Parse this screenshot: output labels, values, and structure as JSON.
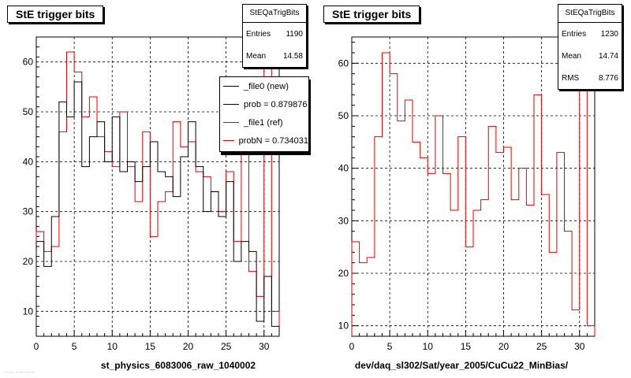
{
  "charts": [
    {
      "title": "StE trigger bits",
      "x_title": "st_physics_6083006_raw_1040002",
      "stats": {
        "name": "StEQaTrigBits",
        "rows": [
          {
            "label": "Entries",
            "value": "1190"
          },
          {
            "label": "Mean",
            "value": "14.58"
          }
        ]
      },
      "legend": [
        {
          "label": "_file0 (new)",
          "color": "#000000"
        },
        {
          "label": "prob = 0.879876",
          "color": "#000000"
        },
        {
          "label": "_file1 (ref)",
          "color": "#e00000"
        },
        {
          "label": "probN = 0.734031",
          "color": "#e00000"
        }
      ]
    },
    {
      "title": "StE trigger bits",
      "x_title": "dev/daq_sl302/Sat/year_2005/CuCu22_MinBias/",
      "stats": {
        "name": "StEQaTrigBits",
        "rows": [
          {
            "label": "Entries",
            "value": "1230"
          },
          {
            "label": "Mean",
            "value": "14.74"
          },
          {
            "label": "RMS",
            "value": "8.776"
          }
        ]
      },
      "legend": []
    }
  ],
  "footer": "... ... .. ... ... ....",
  "chart_data": [
    {
      "type": "histogram",
      "title": "StE trigger bits",
      "xlabel": "st_physics_6083006_raw_1040002",
      "xlim": [
        0,
        32
      ],
      "ylim": [
        5,
        65
      ],
      "xticks": [
        0,
        5,
        10,
        15,
        20,
        25,
        30
      ],
      "yticks": [
        10,
        20,
        30,
        40,
        50,
        60
      ],
      "grid": true,
      "legend_position": "top-right",
      "series": [
        {
          "name": "_file0 (new)",
          "color": "#000000",
          "values": [
            24,
            19,
            29,
            52,
            49,
            56,
            39,
            45,
            48,
            40,
            49,
            38,
            40,
            36,
            39,
            44,
            38,
            37,
            33,
            41,
            48,
            39,
            30,
            34,
            29,
            36,
            20,
            24,
            22,
            8,
            17,
            7
          ]
        },
        {
          "name": "_file1 (ref)",
          "color": "#e00000",
          "values": [
            26,
            22,
            23,
            46,
            62,
            58,
            49,
            53,
            45,
            42,
            39,
            50,
            39,
            32,
            46,
            25,
            32,
            34,
            48,
            43,
            44,
            38,
            37,
            34,
            30,
            38,
            24,
            43,
            18,
            13,
            61,
            10
          ]
        }
      ]
    },
    {
      "type": "histogram",
      "title": "StE trigger bits",
      "xlabel": "dev/daq_sl302/Sat/year_2005/CuCu22_MinBias/",
      "xlim": [
        0,
        32
      ],
      "ylim": [
        8,
        65
      ],
      "xticks": [
        0,
        5,
        10,
        15,
        20,
        25,
        30
      ],
      "yticks": [
        10,
        20,
        30,
        40,
        50,
        60
      ],
      "grid": true,
      "series": [
        {
          "color": "#e00000",
          "values": [
            26,
            22,
            23,
            46,
            62,
            58,
            49,
            53,
            45,
            42,
            39,
            50,
            39,
            32,
            46,
            25,
            32,
            34,
            48,
            43,
            44,
            34,
            40,
            33,
            54,
            35,
            24,
            43,
            28,
            13,
            61,
            10
          ]
        }
      ]
    }
  ]
}
